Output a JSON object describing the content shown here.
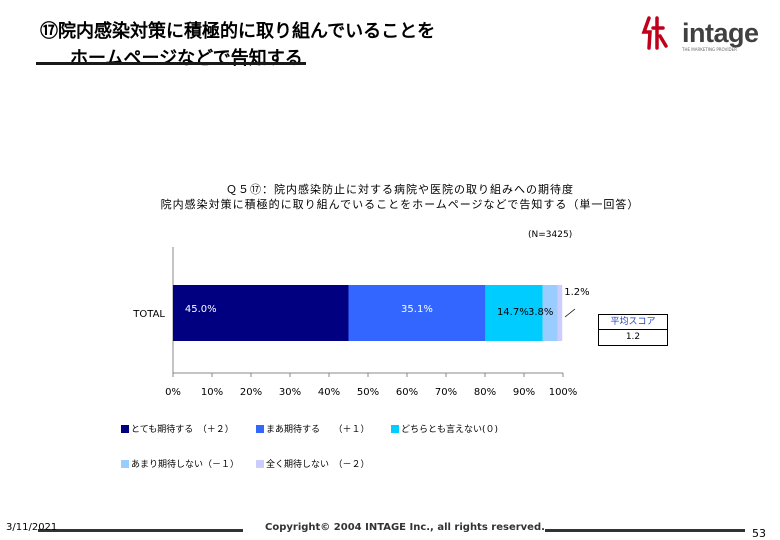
{
  "slide": {
    "title_line1": "⑰院内感染対策に積極的に取り組んでいることを",
    "title_line2": "ホームページなどで告知する",
    "logo_text": "intage",
    "logo_tagline": "THE MARKETING PROVIDER",
    "footer_date": "3/11/2021",
    "footer_copyright": "Copyright© 2004 INTAGE Inc., all rights reserved.",
    "page_number": "53"
  },
  "chart_data": {
    "type": "bar",
    "orientation": "horizontal-stacked-100",
    "title_line1": "Ｑ５⑰：院内感染防止に対する病院や医院の取り組みへの期待度",
    "title_line2": "院内感染対策に積極的に取り組んでいることをホームページなどで告知する（単一回答）",
    "sample_label": "(N=3425)",
    "categories": [
      "TOTAL"
    ],
    "series": [
      {
        "name": "とても期待する　（＋２）",
        "values": [
          45.0
        ],
        "color": "#000080",
        "label": "45.0%",
        "label_color": "#ffffff"
      },
      {
        "name": "まあ期待する　　（＋１）",
        "values": [
          35.1
        ],
        "color": "#3366ff",
        "label": "35.1%",
        "label_color": "#ffffff"
      },
      {
        "name": "どちらとも言えない(０)",
        "values": [
          14.7
        ],
        "color": "#00ccff",
        "label": "14.7%",
        "label_color": "#000000"
      },
      {
        "name": "あまり期待しない（－１）",
        "values": [
          3.8
        ],
        "color": "#99ccff",
        "label": "3.8%",
        "label_color": "#000000"
      },
      {
        "name": "全く期待しない　（－２）",
        "values": [
          1.2
        ],
        "color": "#ccccff",
        "label": "1.2%",
        "label_color": "#000000"
      }
    ],
    "x_ticks": [
      "0%",
      "10%",
      "20%",
      "30%",
      "40%",
      "50%",
      "60%",
      "70%",
      "80%",
      "90%",
      "100%"
    ],
    "xlim": [
      0,
      100
    ],
    "grid": false,
    "legend_position": "bottom",
    "average_box": {
      "label": "平均スコア",
      "value": "1.2"
    }
  }
}
